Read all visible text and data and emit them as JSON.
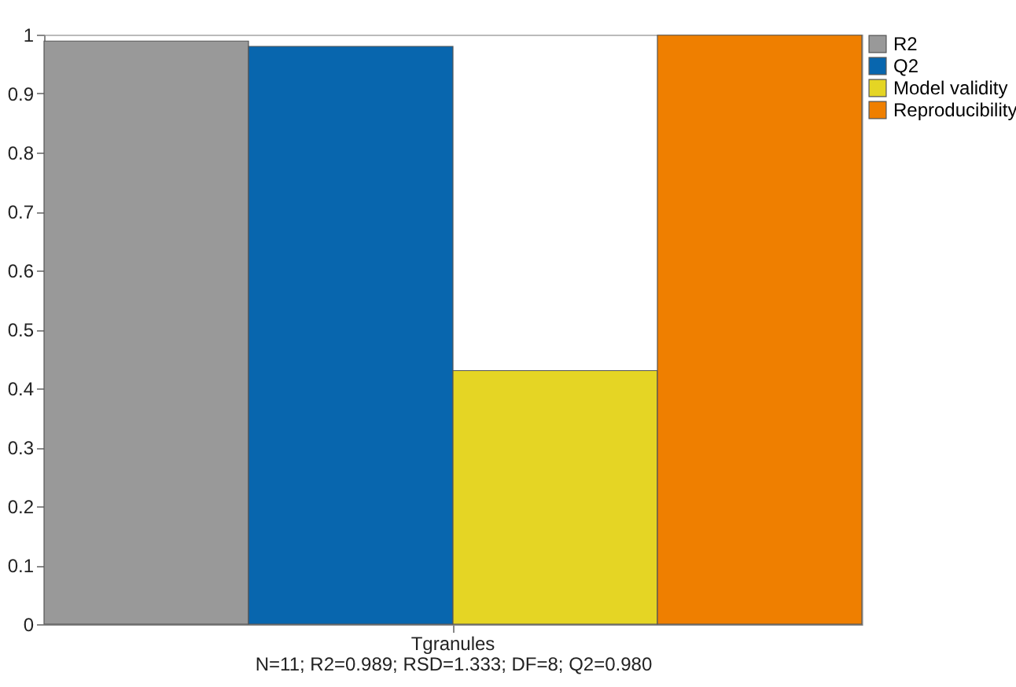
{
  "chart_data": {
    "type": "bar",
    "categories": [
      "Tgranules"
    ],
    "series": [
      {
        "name": "R2",
        "color": "#999999",
        "values": [
          0.989
        ]
      },
      {
        "name": "Q2",
        "color": "#0866ae",
        "values": [
          0.98
        ]
      },
      {
        "name": "Model validity",
        "color": "#e5d524",
        "values": [
          0.43
        ]
      },
      {
        "name": "Reproducibility",
        "color": "#ef7f00",
        "values": [
          0.999
        ]
      }
    ],
    "ylim": [
      0,
      1
    ],
    "yticks": [
      0,
      0.1,
      0.2,
      0.3,
      0.4,
      0.5,
      0.6,
      0.7,
      0.8,
      0.9,
      1
    ],
    "annotations": [
      "N=11; R2=0.989; RSD=1.333; DF=8; Q2=0.980"
    ],
    "legend": "right",
    "grid": false
  }
}
